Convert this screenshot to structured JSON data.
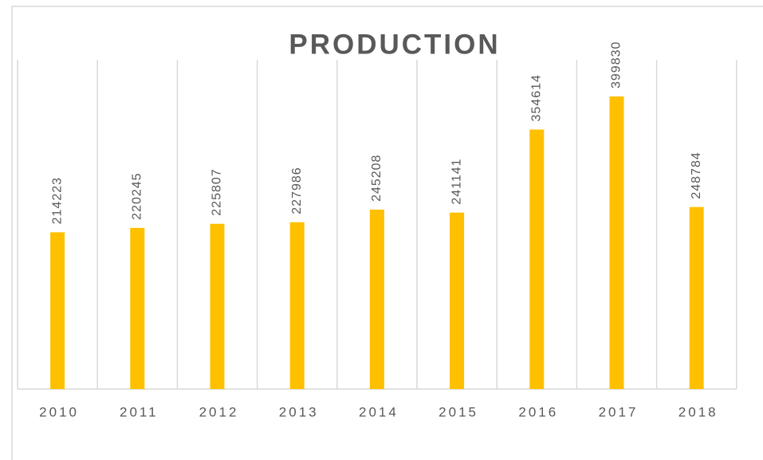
{
  "chart_data": {
    "type": "bar",
    "title": "PRODUCTION",
    "categories": [
      "2010",
      "2011",
      "2012",
      "2013",
      "2014",
      "2015",
      "2016",
      "2017",
      "2018"
    ],
    "values": [
      214223,
      220245,
      225807,
      227986,
      245208,
      241141,
      354614,
      399830,
      248784
    ],
    "color": "#ffc000"
  }
}
